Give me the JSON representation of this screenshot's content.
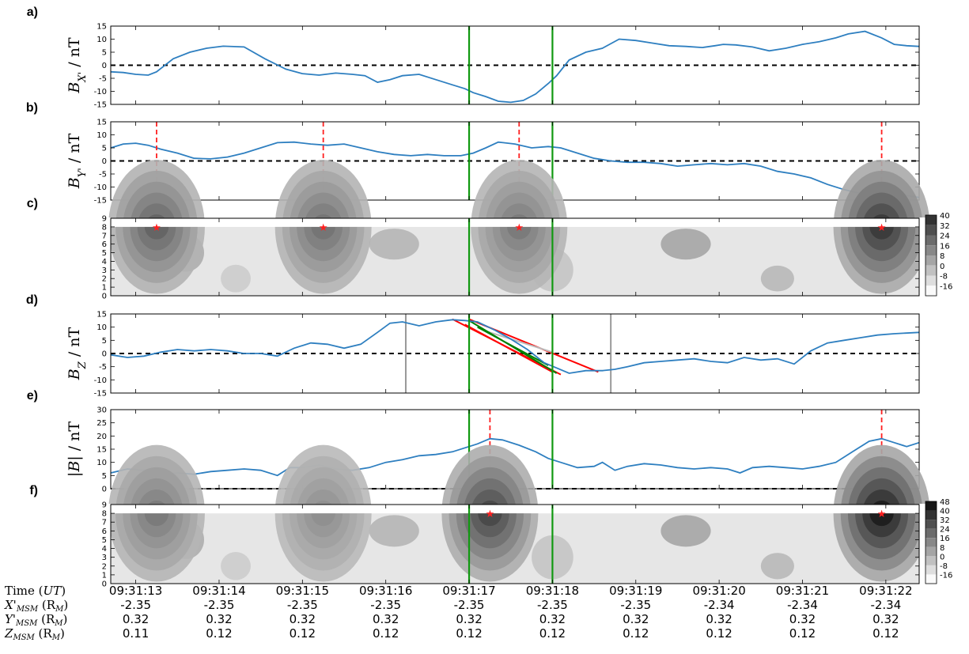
{
  "chart_data": [
    {
      "panel": "a)",
      "type": "line",
      "ylabel_sym": "B",
      "ylabel_sub": "X'",
      "ylabel_unit": " / nT",
      "ylim": [
        -15,
        15
      ],
      "yticks": [
        -15,
        -10,
        -5,
        0,
        5,
        10,
        15
      ],
      "zero_line": true,
      "x": [
        12.7,
        12.85,
        13.0,
        13.15,
        13.25,
        13.45,
        13.65,
        13.85,
        14.05,
        14.3,
        14.55,
        14.8,
        15.0,
        15.2,
        15.4,
        15.6,
        15.75,
        15.9,
        16.05,
        16.2,
        16.4,
        16.6,
        16.8,
        16.95,
        17.05,
        17.2,
        17.35,
        17.5,
        17.65,
        17.8,
        17.95,
        18.05,
        18.2,
        18.4,
        18.6,
        18.8,
        19.0,
        19.2,
        19.4,
        19.6,
        19.8,
        19.95,
        20.05,
        20.2,
        20.4,
        20.6,
        20.8,
        21.0,
        21.2,
        21.4,
        21.55,
        21.75,
        21.95,
        22.1,
        22.25,
        22.4
      ],
      "values": [
        -2.5,
        -2.8,
        -3.5,
        -3.8,
        -2.5,
        2.5,
        5.0,
        6.5,
        7.3,
        7.0,
        2.5,
        -1.5,
        -3.2,
        -3.8,
        -3.0,
        -3.5,
        -4.0,
        -6.5,
        -5.5,
        -4.0,
        -3.5,
        -5.5,
        -7.5,
        -9.0,
        -10.5,
        -12.0,
        -13.8,
        -14.2,
        -13.5,
        -11.0,
        -7.0,
        -4.0,
        2.0,
        5.0,
        6.5,
        10.0,
        9.5,
        8.5,
        7.5,
        7.2,
        6.8,
        7.5,
        8.0,
        7.8,
        7.0,
        5.5,
        6.5,
        8.0,
        9.0,
        10.5,
        12.0,
        13.0,
        10.5,
        8.0,
        7.5,
        7.2
      ],
      "markers": []
    },
    {
      "panel": "b)",
      "type": "line",
      "ylabel_sym": "B",
      "ylabel_sub": "Y'",
      "ylabel_unit": " / nT",
      "ylim": [
        -15,
        15
      ],
      "yticks": [
        -15,
        -10,
        -5,
        0,
        5,
        10,
        15
      ],
      "zero_line": true,
      "x": [
        12.7,
        12.85,
        13.0,
        13.15,
        13.3,
        13.5,
        13.7,
        13.9,
        14.1,
        14.3,
        14.5,
        14.7,
        14.9,
        15.1,
        15.3,
        15.5,
        15.7,
        15.9,
        16.1,
        16.3,
        16.5,
        16.7,
        16.9,
        17.05,
        17.2,
        17.35,
        17.55,
        17.75,
        17.95,
        18.1,
        18.3,
        18.5,
        18.7,
        18.9,
        19.1,
        19.3,
        19.5,
        19.7,
        19.9,
        20.1,
        20.3,
        20.5,
        20.7,
        20.9,
        21.1,
        21.3,
        21.5,
        21.7,
        21.85,
        21.95,
        22.05,
        22.2,
        22.4
      ],
      "values": [
        5.0,
        6.5,
        6.8,
        6.0,
        4.5,
        3.0,
        1.0,
        0.8,
        1.5,
        3.0,
        5.0,
        7.0,
        7.2,
        6.5,
        6.0,
        6.5,
        5.0,
        3.5,
        2.5,
        2.0,
        2.5,
        2.0,
        2.0,
        3.0,
        5.0,
        7.2,
        6.5,
        5.0,
        5.5,
        5.0,
        3.0,
        1.0,
        0.0,
        -0.5,
        -0.5,
        -1.0,
        -2.0,
        -1.5,
        -1.0,
        -1.5,
        -1.0,
        -2.0,
        -4.0,
        -5.0,
        -6.5,
        -9.0,
        -11.0,
        -12.5,
        -13.5,
        -14.3,
        -12.5,
        -13.0,
        -14.0
      ],
      "markers": [
        13.25,
        15.25,
        17.6,
        21.95
      ]
    },
    {
      "panel": "c)",
      "type": "heatmap",
      "ylim": [
        0,
        9
      ],
      "yticks": [
        0,
        1,
        2,
        3,
        4,
        5,
        6,
        7,
        8,
        9
      ],
      "colorbar": [
        40,
        32,
        24,
        16,
        8,
        0,
        -8,
        -16
      ],
      "peaks": [
        {
          "x": 13.25,
          "v": 26
        },
        {
          "x": 15.25,
          "v": 22
        },
        {
          "x": 17.6,
          "v": 20
        },
        {
          "x": 21.95,
          "v": 38
        }
      ],
      "stars": [
        13.25,
        15.25,
        17.6,
        21.95
      ]
    },
    {
      "panel": "d)",
      "type": "line",
      "ylabel_sym": "B",
      "ylabel_sub": "Z",
      "ylabel_unit": " / nT",
      "ylim": [
        -15,
        15
      ],
      "yticks": [
        -15,
        -10,
        -5,
        0,
        5,
        10,
        15
      ],
      "zero_line": true,
      "x": [
        12.7,
        12.9,
        13.1,
        13.3,
        13.5,
        13.7,
        13.9,
        14.1,
        14.3,
        14.5,
        14.7,
        14.9,
        15.1,
        15.3,
        15.5,
        15.7,
        15.9,
        16.05,
        16.2,
        16.4,
        16.6,
        16.8,
        16.95,
        17.1,
        17.3,
        17.5,
        17.7,
        17.9,
        18.05,
        18.2,
        18.4,
        18.6,
        18.75,
        18.9,
        19.1,
        19.3,
        19.5,
        19.7,
        19.9,
        20.1,
        20.3,
        20.5,
        20.7,
        20.9,
        21.1,
        21.3,
        21.5,
        21.7,
        21.9,
        22.1,
        22.4
      ],
      "values": [
        -0.5,
        -1.5,
        -1.0,
        0.5,
        1.5,
        1.0,
        1.5,
        1.0,
        0.0,
        0.0,
        -1.0,
        2.0,
        4.0,
        3.5,
        2.0,
        3.5,
        8.0,
        11.5,
        12.0,
        10.5,
        12.0,
        12.8,
        12.5,
        12.0,
        9.0,
        5.5,
        1.5,
        -3.5,
        -5.5,
        -7.5,
        -6.5,
        -6.5,
        -6.0,
        -5.0,
        -3.5,
        -3.0,
        -2.5,
        -2.0,
        -3.0,
        -3.5,
        -1.5,
        -2.5,
        -2.0,
        -4.0,
        1.0,
        4.0,
        5.0,
        6.0,
        7.0,
        7.5,
        8.0
      ],
      "markers": [],
      "gray_lines": [
        16.24,
        18.7
      ],
      "fit_lines": [
        {
          "color": "#ff0000",
          "x": [
            16.8,
            18.1
          ],
          "y": [
            13.0,
            -8.0
          ]
        },
        {
          "color": "#ff0000",
          "x": [
            17.0,
            18.55
          ],
          "y": [
            13.0,
            -7.0
          ]
        },
        {
          "color": "#ff0000",
          "x": [
            16.95,
            18.0
          ],
          "y": [
            11.0,
            -7.0
          ]
        },
        {
          "color": "#bbbbbb",
          "x": [
            17.2,
            18.0
          ],
          "y": [
            8.5,
            0.5
          ]
        },
        {
          "color": "#008000",
          "x": [
            17.0,
            18.05
          ],
          "y": [
            12.5,
            -7.5
          ]
        },
        {
          "color": "#008000",
          "x": [
            17.1,
            17.95
          ],
          "y": [
            10.0,
            -4.5
          ]
        }
      ]
    },
    {
      "panel": "e)",
      "type": "line",
      "ylabel_sym": "|B|",
      "ylabel_sub": "",
      "ylabel_unit": " / nT",
      "ylim": [
        0,
        30
      ],
      "yticks": [
        0,
        5,
        10,
        15,
        20,
        25,
        30
      ],
      "zero_line": true,
      "x": [
        12.7,
        12.9,
        13.1,
        13.3,
        13.5,
        13.7,
        13.9,
        14.1,
        14.3,
        14.5,
        14.7,
        14.85,
        15.0,
        15.2,
        15.4,
        15.6,
        15.8,
        16.0,
        16.2,
        16.4,
        16.6,
        16.8,
        16.95,
        17.1,
        17.25,
        17.4,
        17.6,
        17.8,
        17.95,
        18.1,
        18.3,
        18.5,
        18.6,
        18.75,
        18.9,
        19.1,
        19.3,
        19.5,
        19.7,
        19.9,
        20.1,
        20.25,
        20.4,
        20.6,
        20.8,
        21.0,
        21.2,
        21.4,
        21.6,
        21.8,
        21.95,
        22.1,
        22.25,
        22.4
      ],
      "values": [
        6.0,
        7.5,
        7.0,
        5.0,
        6.0,
        5.5,
        6.5,
        7.0,
        7.5,
        7.0,
        5.0,
        8.0,
        8.0,
        9.0,
        7.5,
        7.0,
        8.0,
        10.0,
        11.0,
        12.5,
        13.0,
        14.0,
        15.5,
        17.0,
        19.0,
        18.5,
        16.5,
        14.0,
        11.5,
        10.0,
        8.0,
        8.5,
        10.0,
        7.0,
        8.5,
        9.5,
        9.0,
        8.0,
        7.5,
        8.0,
        7.5,
        6.0,
        8.0,
        8.5,
        8.0,
        7.5,
        8.5,
        10.0,
        14.0,
        18.0,
        19.0,
        17.5,
        16.0,
        17.5
      ],
      "markers": [
        17.25,
        21.95
      ]
    },
    {
      "panel": "f)",
      "type": "heatmap",
      "ylim": [
        0,
        9
      ],
      "yticks": [
        0,
        1,
        2,
        3,
        4,
        5,
        6,
        7,
        8,
        9
      ],
      "colorbar": [
        48,
        40,
        32,
        24,
        16,
        8,
        0,
        -8,
        -16
      ],
      "peaks": [
        {
          "x": 13.25,
          "v": 20
        },
        {
          "x": 15.25,
          "v": 14
        },
        {
          "x": 17.25,
          "v": 34
        },
        {
          "x": 21.95,
          "v": 46
        }
      ],
      "stars": [
        17.25,
        21.95
      ]
    }
  ],
  "xaxis": {
    "xlim": [
      12.7,
      22.4
    ],
    "tick_x": [
      13,
      14,
      15,
      16,
      17,
      18,
      19,
      20,
      21,
      22
    ]
  },
  "green_lines": [
    17.0,
    18.0
  ],
  "colors": {
    "line": "#2e7fc0",
    "marker": "#ff2020",
    "green": "#119911",
    "gray": "#999999"
  },
  "table": {
    "row_headers": [
      {
        "main": "Time (",
        "it": "UT",
        "tail": ")"
      },
      {
        "main": "X'",
        "sub": "MSM",
        "tail": " (R",
        "sub2": "M",
        "end": ")"
      },
      {
        "main": "Y'",
        "sub": "MSM",
        "tail": " (R",
        "sub2": "M",
        "end": ")"
      },
      {
        "main": "Z",
        "sub": "MSM",
        "tail": " (R",
        "sub2": "M",
        "end": ")"
      }
    ],
    "time": [
      "09:31:13",
      "09:31:14",
      "09:31:15",
      "09:31:16",
      "09:31:17",
      "09:31:18",
      "09:31:19",
      "09:31:20",
      "09:31:21",
      "09:31:22"
    ],
    "x": [
      "-2.35",
      "-2.35",
      "-2.35",
      "-2.35",
      "-2.35",
      "-2.35",
      "-2.35",
      "-2.34",
      "-2.34",
      "-2.34"
    ],
    "y": [
      "0.32",
      "0.32",
      "0.32",
      "0.32",
      "0.32",
      "0.32",
      "0.32",
      "0.32",
      "0.32",
      "0.32"
    ],
    "z": [
      "0.11",
      "0.12",
      "0.12",
      "0.12",
      "0.12",
      "0.12",
      "0.12",
      "0.12",
      "0.12",
      "0.12"
    ]
  }
}
